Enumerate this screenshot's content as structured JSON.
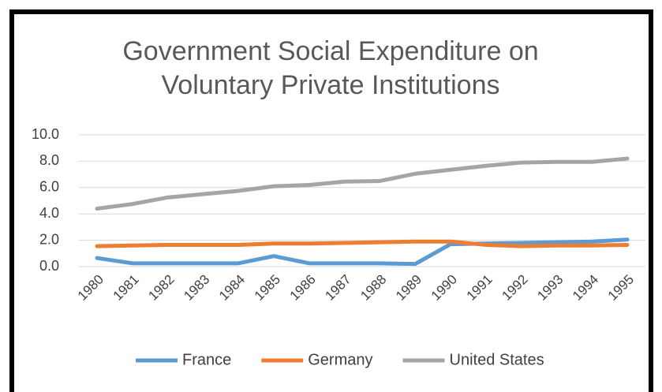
{
  "chart_data": {
    "type": "line",
    "title": "Government Social Expenditure on Voluntary Private Institutions",
    "categories": [
      "1980",
      "1981",
      "1982",
      "1983",
      "1984",
      "1985",
      "1986",
      "1987",
      "1988",
      "1989",
      "1990",
      "1991",
      "1992",
      "1993",
      "1994",
      "1995"
    ],
    "series": [
      {
        "name": "France",
        "color": "#5b9bd5",
        "values": [
          0.65,
          0.25,
          0.25,
          0.25,
          0.25,
          0.8,
          0.25,
          0.25,
          0.25,
          0.2,
          1.7,
          1.75,
          1.8,
          1.85,
          1.9,
          2.05
        ]
      },
      {
        "name": "Germany",
        "color": "#ed7d31",
        "values": [
          1.55,
          1.6,
          1.65,
          1.65,
          1.65,
          1.75,
          1.75,
          1.8,
          1.85,
          1.9,
          1.9,
          1.65,
          1.55,
          1.6,
          1.6,
          1.65
        ]
      },
      {
        "name": "United States",
        "color": "#a5a5a5",
        "values": [
          4.4,
          4.75,
          5.25,
          5.5,
          5.75,
          6.1,
          6.2,
          6.45,
          6.5,
          7.05,
          7.35,
          7.65,
          7.9,
          7.95,
          7.95,
          8.2
        ]
      }
    ],
    "ylim": [
      0,
      10
    ],
    "yticks": [
      {
        "value": 0,
        "label": "0.0"
      },
      {
        "value": 2,
        "label": "2.0"
      },
      {
        "value": 4,
        "label": "4.0"
      },
      {
        "value": 6,
        "label": "6.0"
      },
      {
        "value": 8,
        "label": "8.0"
      },
      {
        "value": 10,
        "label": "10.0"
      }
    ],
    "grid": true,
    "legend": "bottom"
  }
}
